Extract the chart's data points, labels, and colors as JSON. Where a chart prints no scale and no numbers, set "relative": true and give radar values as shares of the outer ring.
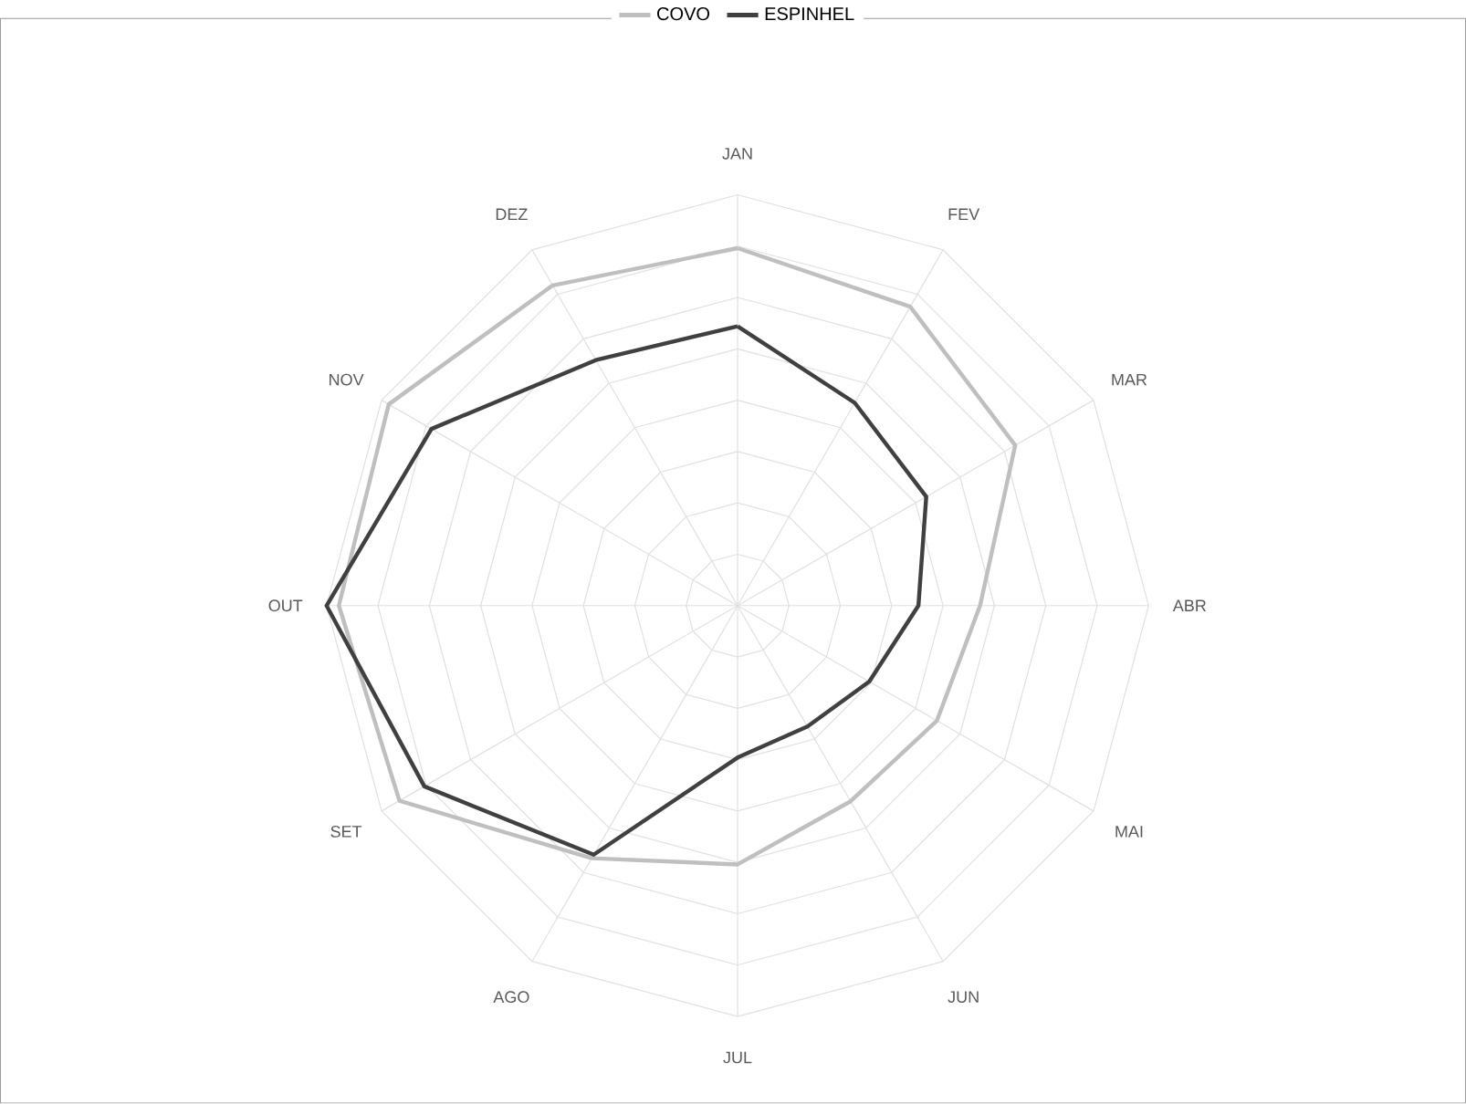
{
  "chart_data": {
    "type": "radar",
    "relative": true,
    "grid": true,
    "legend": "top",
    "marker": "none",
    "categories": [
      "JAN",
      "FEV",
      "MAR",
      "ABR",
      "MAI",
      "JUN",
      "JUL",
      "AGO",
      "SET",
      "OUT",
      "NOV",
      "DEZ"
    ],
    "series": [
      {
        "name": "COVO",
        "color": "#bfbfbf",
        "values": [
          0.87,
          0.84,
          0.78,
          0.59,
          0.56,
          0.55,
          0.63,
          0.71,
          0.95,
          0.97,
          0.98,
          0.9
        ]
      },
      {
        "name": "ESPINHEL",
        "color": "#404040",
        "values": [
          0.68,
          0.57,
          0.53,
          0.44,
          0.37,
          0.34,
          0.37,
          0.7,
          0.88,
          1.0,
          0.86,
          0.69
        ]
      }
    ]
  }
}
